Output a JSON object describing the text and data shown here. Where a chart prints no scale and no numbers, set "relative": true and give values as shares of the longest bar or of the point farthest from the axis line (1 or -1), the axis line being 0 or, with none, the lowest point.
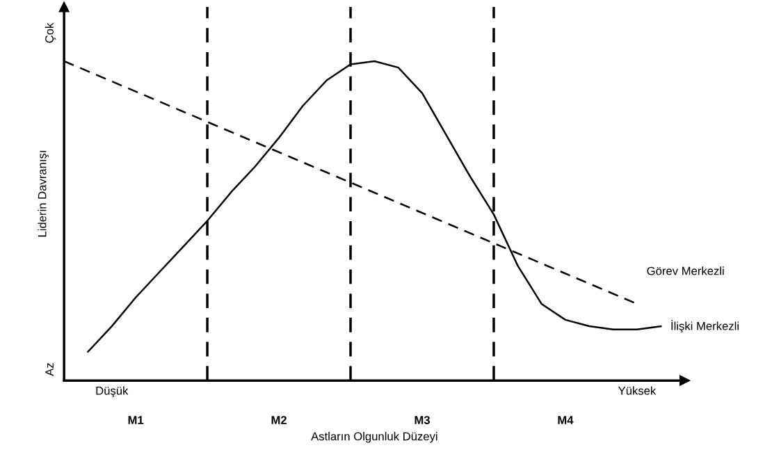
{
  "chart_data": {
    "type": "line",
    "relative": true,
    "xlabel": "Astların Olgunluk Düzeyi",
    "ylabel": "Liderin Davranışı",
    "categories": [
      null,
      null,
      "Düşük",
      null,
      null,
      null,
      null,
      null,
      null,
      null,
      null,
      null,
      null,
      null,
      null,
      null,
      null,
      null,
      null,
      null,
      null,
      null,
      null,
      null,
      "Yüksek",
      null
    ],
    "series": [
      {
        "name": "Görev Merkezli",
        "color": "#000000",
        "line_style": "dashed",
        "values": [
          1.0,
          null,
          null,
          null,
          null,
          null,
          null,
          null,
          null,
          null,
          null,
          null,
          null,
          null,
          null,
          null,
          null,
          null,
          null,
          null,
          null,
          null,
          null,
          null,
          0.24,
          null
        ]
      },
      {
        "name": "İlişki Merkezli",
        "color": "#000000",
        "line_style": "solid",
        "values": [
          null,
          0.09,
          0.17,
          0.26,
          0.34,
          0.42,
          0.5,
          0.59,
          0.67,
          0.76,
          0.86,
          0.94,
          0.99,
          1.0,
          0.98,
          0.9,
          0.77,
          0.64,
          0.52,
          0.36,
          0.24,
          0.19,
          0.17,
          0.16,
          0.16,
          0.17
        ]
      }
    ],
    "annotations": [
      "Çok",
      "Az",
      "M1",
      "M2",
      "M3",
      "M4"
    ],
    "grid": "x",
    "legend": false,
    "marker": "none"
  }
}
